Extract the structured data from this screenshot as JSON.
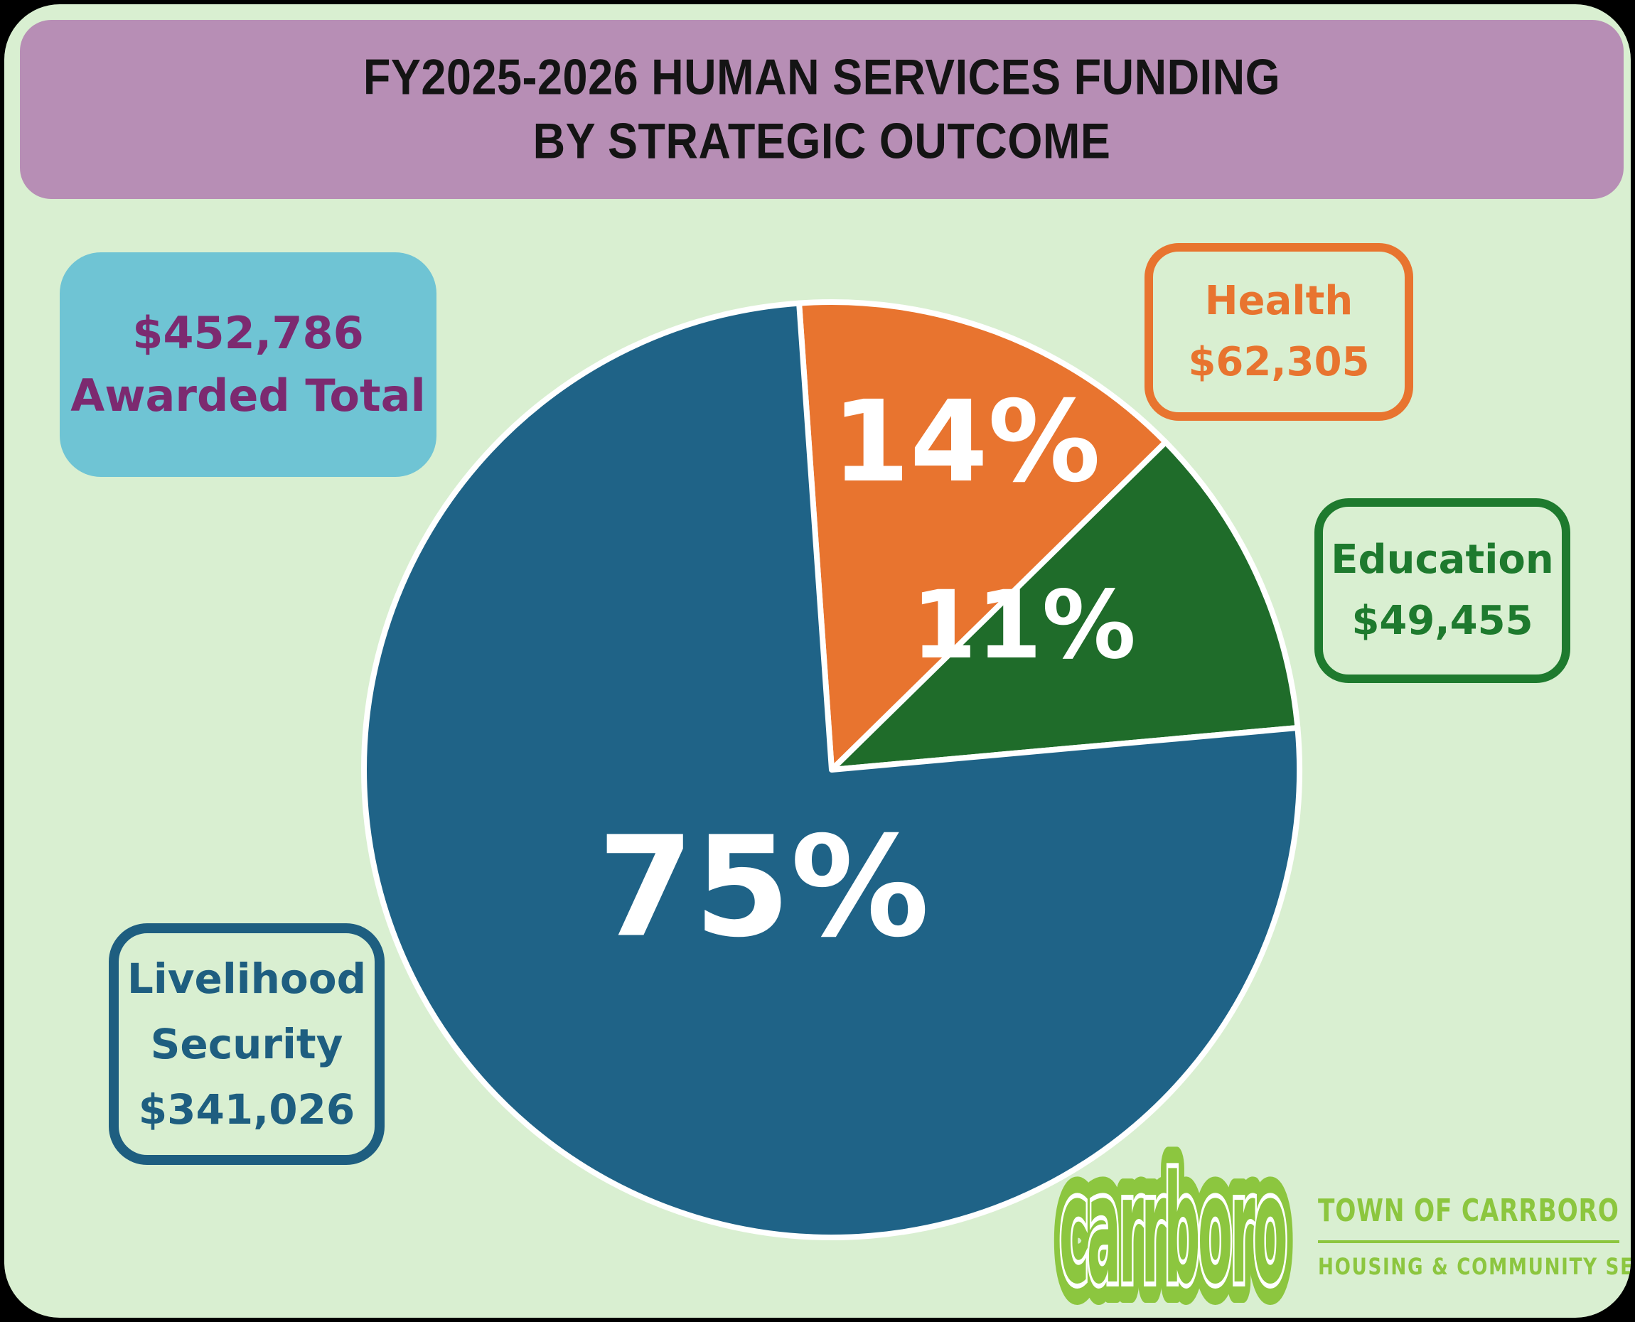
{
  "title": {
    "line1": "FY2025-2026 HUMAN SERVICES FUNDING",
    "line2": "BY STRATEGIC OUTCOME"
  },
  "total_box": {
    "amount": "$452,786",
    "label": "Awarded Total"
  },
  "callouts": {
    "health": {
      "label": "Health",
      "amount": "$62,305"
    },
    "education": {
      "label": "Education",
      "amount": "$49,455"
    },
    "livelihood": {
      "line1": "Livelihood",
      "line2": "Security",
      "amount": "$341,026"
    }
  },
  "chart_data": {
    "type": "pie",
    "title": "FY2025-2026 Human Services Funding by Strategic Outcome",
    "total_awarded": 452786,
    "start_angle_deg": -4,
    "direction": "clockwise",
    "legend_position": "callout-boxes",
    "slices": [
      {
        "label": "Health",
        "value": 62305,
        "percent": 14,
        "pct_label": "14%",
        "color": "#E8742F"
      },
      {
        "label": "Education",
        "value": 49455,
        "percent": 11,
        "pct_label": "11%",
        "color": "#1F6C2A"
      },
      {
        "label": "Livelihood Security",
        "value": 341026,
        "percent": 75,
        "pct_label": "75%",
        "color": "#1F6387"
      }
    ]
  },
  "logo": {
    "wordmark": "carrboro",
    "org": "TOWN OF CARRBORO • NC",
    "dept": "HOUSING & COMMUNITY SERVICES"
  },
  "colors": {
    "page_background": "#000000",
    "sheet_background": "#D9EFD1",
    "banner_background": "#B78EB5",
    "banner_text": "#141414",
    "total_box_background": "#6FC4D4",
    "total_box_text": "#7C2A70",
    "health_accent": "#E8742F",
    "education_accent": "#1E7A2E",
    "livelihood_accent": "#1E5E80",
    "pie_outline": "#FFFFFF",
    "logo_green": "#8CC63F"
  }
}
